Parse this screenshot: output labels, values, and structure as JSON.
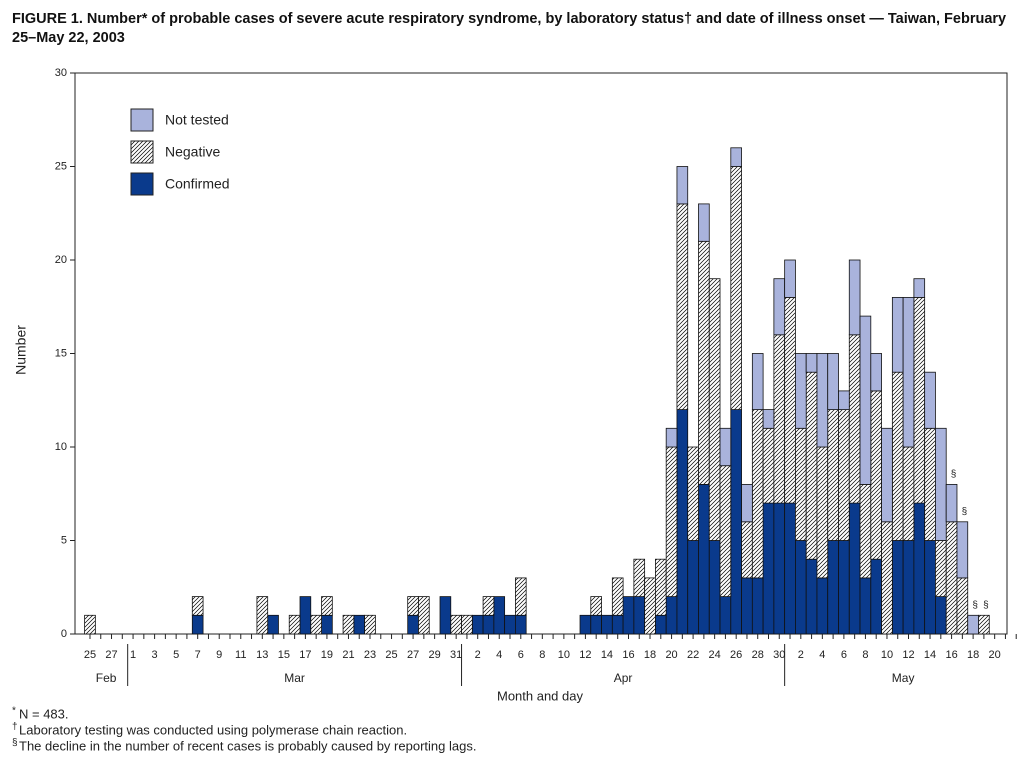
{
  "chart_data": {
    "type": "stacked_bar",
    "title": "FIGURE 1. Number* of probable cases of severe acute respiratory syndrome, by laboratory status† and date of illness onset — Taiwan, February 25–May 22, 2003",
    "ylabel": "Number",
    "xlabel": "Month and day",
    "ylim": [
      0,
      30
    ],
    "yticks": [
      0,
      5,
      10,
      15,
      20,
      25,
      30
    ],
    "categories": [
      "25",
      null,
      "27",
      null,
      "1",
      null,
      "3",
      null,
      "5",
      null,
      "7",
      null,
      "9",
      null,
      "11",
      null,
      "13",
      null,
      "15",
      null,
      "17",
      null,
      "19",
      null,
      "21",
      null,
      "23",
      null,
      "25",
      null,
      "27",
      null,
      "29",
      null,
      "31",
      null,
      "2",
      null,
      "4",
      null,
      "6",
      null,
      "8",
      null,
      "10",
      null,
      "12",
      null,
      "14",
      null,
      "16",
      null,
      "18",
      null,
      "20",
      null,
      "22",
      null,
      "24",
      null,
      "26",
      null,
      "28",
      null,
      "30",
      null,
      "2",
      null,
      "4",
      null,
      "6",
      null,
      "8",
      null,
      "10",
      null,
      "12",
      null,
      "14",
      null,
      "16",
      null,
      "18",
      null,
      "20",
      null,
      null
    ],
    "months": [
      {
        "label": "Feb",
        "first_index": 0
      },
      {
        "label": "Mar",
        "first_index": 4
      },
      {
        "label": "Apr",
        "first_index": 35
      },
      {
        "label": "May",
        "first_index": 65
      }
    ],
    "series": [
      {
        "name": "Not tested",
        "color": "#a9b3dc",
        "pattern": "solid",
        "values": [
          0,
          0,
          0,
          0,
          0,
          0,
          0,
          0,
          0,
          0,
          0,
          0,
          0,
          0,
          0,
          0,
          0,
          0,
          0,
          0,
          0,
          0,
          0,
          0,
          0,
          0,
          0,
          0,
          0,
          0,
          0,
          0,
          0,
          0,
          0,
          0,
          0,
          0,
          0,
          0,
          0,
          0,
          0,
          0,
          0,
          0,
          0,
          0,
          0,
          0,
          0,
          0,
          0,
          0,
          1,
          2,
          0,
          2,
          0,
          2,
          1,
          2,
          3,
          1,
          3,
          2,
          4,
          1,
          5,
          3,
          1,
          4,
          9,
          2,
          5,
          4,
          8,
          1,
          3,
          6,
          2,
          3,
          1,
          0,
          0,
          0,
          0
        ]
      },
      {
        "name": "Negative",
        "color": "#000000",
        "pattern": "hatch",
        "values": [
          1,
          0,
          0,
          0,
          0,
          0,
          0,
          0,
          0,
          0,
          1,
          0,
          0,
          0,
          0,
          0,
          2,
          0,
          0,
          1,
          0,
          1,
          1,
          0,
          1,
          0,
          1,
          0,
          0,
          0,
          1,
          2,
          0,
          0,
          1,
          1,
          0,
          1,
          0,
          0,
          2,
          0,
          0,
          0,
          0,
          0,
          0,
          1,
          0,
          2,
          0,
          2,
          3,
          3,
          8,
          11,
          5,
          13,
          14,
          7,
          13,
          3,
          9,
          4,
          9,
          11,
          6,
          10,
          7,
          7,
          7,
          9,
          5,
          9,
          6,
          9,
          5,
          11,
          6,
          3,
          6,
          3,
          0,
          1,
          0,
          0,
          0
        ]
      },
      {
        "name": "Confirmed",
        "color": "#0a3a8c",
        "pattern": "solid",
        "values": [
          0,
          0,
          0,
          0,
          0,
          0,
          0,
          0,
          0,
          0,
          1,
          0,
          0,
          0,
          0,
          0,
          0,
          1,
          0,
          0,
          2,
          0,
          1,
          0,
          0,
          1,
          0,
          0,
          0,
          0,
          1,
          0,
          0,
          2,
          0,
          0,
          1,
          1,
          2,
          1,
          1,
          0,
          0,
          0,
          0,
          0,
          1,
          1,
          1,
          1,
          2,
          2,
          0,
          1,
          2,
          12,
          5,
          8,
          5,
          2,
          12,
          3,
          3,
          7,
          7,
          7,
          5,
          4,
          3,
          5,
          5,
          7,
          3,
          4,
          0,
          5,
          5,
          7,
          5,
          2,
          0,
          0,
          0,
          0,
          0,
          0,
          0
        ]
      }
    ],
    "annotations": [
      {
        "text": "§",
        "index": 80
      },
      {
        "text": "§",
        "index": 81
      },
      {
        "text": "§",
        "index": 82
      },
      {
        "text": "§",
        "index": 83
      }
    ],
    "footnotes": [
      {
        "mark": "*",
        "text": "N = 483."
      },
      {
        "mark": "†",
        "text": "Laboratory testing was conducted using polymerase chain reaction."
      },
      {
        "mark": "§",
        "text": "The decline in the number of recent cases is probably caused by reporting lags."
      }
    ]
  }
}
